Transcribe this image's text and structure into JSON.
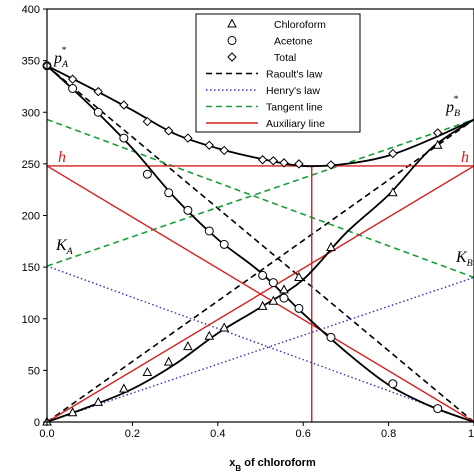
{
  "chart_data": {
    "type": "line",
    "xlabel": "x",
    "xlabel_sub": "B",
    "xlabel_rest": " of chloroform",
    "xlim": [
      0,
      1
    ],
    "ylim": [
      0,
      400
    ],
    "x_ticks": [
      "0.0",
      "0.2",
      "0.4",
      "0.6",
      "0.8",
      "1"
    ],
    "y_ticks": [
      "0",
      "50",
      "100",
      "150",
      "200",
      "250",
      "300",
      "350",
      "400"
    ],
    "grid": false,
    "legend_position": "top-center",
    "legend": [
      {
        "label": "Chloroform",
        "marker": "triangle"
      },
      {
        "label": "Acetone",
        "marker": "circle"
      },
      {
        "label": "Total",
        "marker": "diamond"
      },
      {
        "label": "Raoult's law",
        "style": "dashed",
        "color": "#000000"
      },
      {
        "label": "Henry's law",
        "style": "dotted",
        "color": "#3333bb"
      },
      {
        "label": "Tangent line",
        "style": "dashed",
        "color": "#1a9e3a"
      },
      {
        "label": "Auxiliary line",
        "style": "solid",
        "color": "#d42020"
      }
    ],
    "series": [
      {
        "name": "Chloroform",
        "marker": "triangle",
        "x": [
          0.0,
          0.06,
          0.12,
          0.18,
          0.235,
          0.285,
          0.33,
          0.38,
          0.415,
          0.505,
          0.53,
          0.555,
          0.59,
          0.665,
          0.81,
          0.915
        ],
        "y": [
          0,
          9,
          19,
          32,
          48,
          58,
          73,
          83,
          91,
          112,
          117,
          128,
          140,
          169,
          222,
          268
        ]
      },
      {
        "name": "Acetone",
        "marker": "circle",
        "x": [
          0.0,
          0.06,
          0.12,
          0.18,
          0.235,
          0.285,
          0.33,
          0.38,
          0.415,
          0.505,
          0.53,
          0.555,
          0.59,
          0.665,
          0.81,
          0.915
        ],
        "y": [
          345,
          323,
          300,
          275,
          240,
          222,
          205,
          185,
          172,
          142,
          135,
          120,
          110,
          82,
          37,
          13
        ]
      },
      {
        "name": "Total",
        "marker": "diamond",
        "x": [
          0.0,
          0.06,
          0.12,
          0.18,
          0.235,
          0.285,
          0.33,
          0.38,
          0.415,
          0.505,
          0.53,
          0.555,
          0.59,
          0.665,
          0.81,
          0.915
        ],
        "y": [
          345,
          332,
          320,
          307,
          291,
          282,
          275,
          268,
          263,
          254,
          253,
          251,
          250,
          249,
          260,
          280
        ]
      }
    ],
    "fit_curves": {
      "chloroform": {
        "x": [
          0,
          0.1,
          0.2,
          0.3,
          0.4,
          0.5,
          0.6,
          0.7,
          0.8,
          0.9,
          1.0
        ],
        "y": [
          0,
          15,
          32,
          56,
          86,
          111,
          138,
          183,
          220,
          265,
          293
        ]
      },
      "acetone": {
        "x": [
          0,
          0.1,
          0.2,
          0.3,
          0.4,
          0.5,
          0.6,
          0.7,
          0.8,
          0.9,
          1.0
        ],
        "y": [
          345,
          307,
          265,
          217,
          177,
          145,
          105,
          68,
          36,
          15,
          0
        ]
      },
      "total": {
        "x": [
          0,
          0.1,
          0.2,
          0.3,
          0.4,
          0.5,
          0.6,
          0.7,
          0.8,
          0.9,
          1.0
        ],
        "y": [
          345,
          324,
          302,
          279,
          265,
          255,
          248,
          250,
          258,
          274,
          293
        ]
      }
    },
    "reference_lines": {
      "raoult_chloroform": {
        "x": [
          0,
          1
        ],
        "y": [
          0,
          293
        ]
      },
      "raoult_acetone": {
        "x": [
          0,
          1
        ],
        "y": [
          345,
          0
        ]
      },
      "henry_chloroform": {
        "x": [
          0,
          1
        ],
        "y": [
          0,
          140
        ]
      },
      "henry_acetone": {
        "x": [
          0,
          1
        ],
        "y": [
          151,
          0
        ]
      },
      "tangent_left": {
        "x": [
          0,
          1
        ],
        "y": [
          151,
          293
        ]
      },
      "tangent_right": {
        "x": [
          0,
          1
        ],
        "y": [
          293,
          140
        ]
      },
      "auxiliary_h": {
        "x": [
          0,
          1
        ],
        "y": [
          248,
          248
        ]
      },
      "auxiliary_diag1": {
        "x": [
          0,
          1
        ],
        "y": [
          248,
          0
        ]
      },
      "auxiliary_diag2": {
        "x": [
          0,
          1
        ],
        "y": [
          0,
          248
        ]
      },
      "auxiliary_vertical": {
        "x": [
          0.62,
          0.62
        ],
        "y": [
          0,
          248
        ]
      }
    },
    "annotations": {
      "pA": {
        "text": "p",
        "sub": "A",
        "sup": "*"
      },
      "pB": {
        "text": "p",
        "sub": "B",
        "sup": "*"
      },
      "h_left": {
        "text": "h"
      },
      "h_right": {
        "text": "h"
      },
      "KA": {
        "text": "K",
        "sub": "A"
      },
      "KB": {
        "text": "K",
        "sub": "B"
      }
    }
  }
}
